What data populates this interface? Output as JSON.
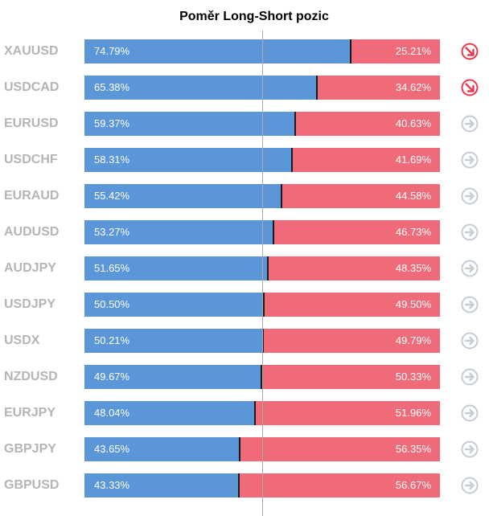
{
  "chart_data": {
    "type": "bar",
    "title": "Poměr Long-Short pozic",
    "categories": [
      "XAUUSD",
      "USDCAD",
      "EURUSD",
      "USDCHF",
      "EURAUD",
      "AUDUSD",
      "AUDJPY",
      "USDJPY",
      "USDX",
      "NZDUSD",
      "EURJPY",
      "GBPJPY",
      "GBPUSD"
    ],
    "series": [
      {
        "values": [
          74.79,
          65.38,
          59.37,
          58.31,
          55.42,
          53.27,
          51.65,
          50.5,
          50.21,
          49.67,
          48.04,
          43.65,
          43.33
        ]
      },
      {
        "values": [
          25.21,
          34.62,
          40.63,
          41.69,
          44.58,
          46.73,
          48.35,
          49.5,
          49.79,
          50.33,
          51.96,
          56.35,
          56.67
        ]
      }
    ],
    "ylim": [
      0,
      100
    ],
    "colors": {
      "long": "#5b96d8",
      "short": "#ef6b7a"
    },
    "rows": [
      {
        "symbol": "XAUUSD",
        "long": "74.79%",
        "short": "25.21%",
        "icon": "trend-down-icon"
      },
      {
        "symbol": "USDCAD",
        "long": "65.38%",
        "short": "34.62%",
        "icon": "trend-down-icon"
      },
      {
        "symbol": "EURUSD",
        "long": "59.37%",
        "short": "40.63%",
        "icon": "arrow-right-icon"
      },
      {
        "symbol": "USDCHF",
        "long": "58.31%",
        "short": "41.69%",
        "icon": "arrow-right-icon"
      },
      {
        "symbol": "EURAUD",
        "long": "55.42%",
        "short": "44.58%",
        "icon": "arrow-right-icon"
      },
      {
        "symbol": "AUDUSD",
        "long": "53.27%",
        "short": "46.73%",
        "icon": "arrow-right-icon"
      },
      {
        "symbol": "AUDJPY",
        "long": "51.65%",
        "short": "48.35%",
        "icon": "arrow-right-icon"
      },
      {
        "symbol": "USDJPY",
        "long": "50.50%",
        "short": "49.50%",
        "icon": "arrow-right-icon"
      },
      {
        "symbol": "USDX",
        "long": "50.21%",
        "short": "49.79%",
        "icon": "arrow-right-icon"
      },
      {
        "symbol": "NZDUSD",
        "long": "49.67%",
        "short": "50.33%",
        "icon": "arrow-right-icon"
      },
      {
        "symbol": "EURJPY",
        "long": "48.04%",
        "short": "51.96%",
        "icon": "arrow-right-icon"
      },
      {
        "symbol": "GBPJPY",
        "long": "43.65%",
        "short": "56.35%",
        "icon": "arrow-right-icon"
      },
      {
        "symbol": "GBPUSD",
        "long": "43.33%",
        "short": "56.67%",
        "icon": "arrow-right-icon"
      }
    ]
  }
}
